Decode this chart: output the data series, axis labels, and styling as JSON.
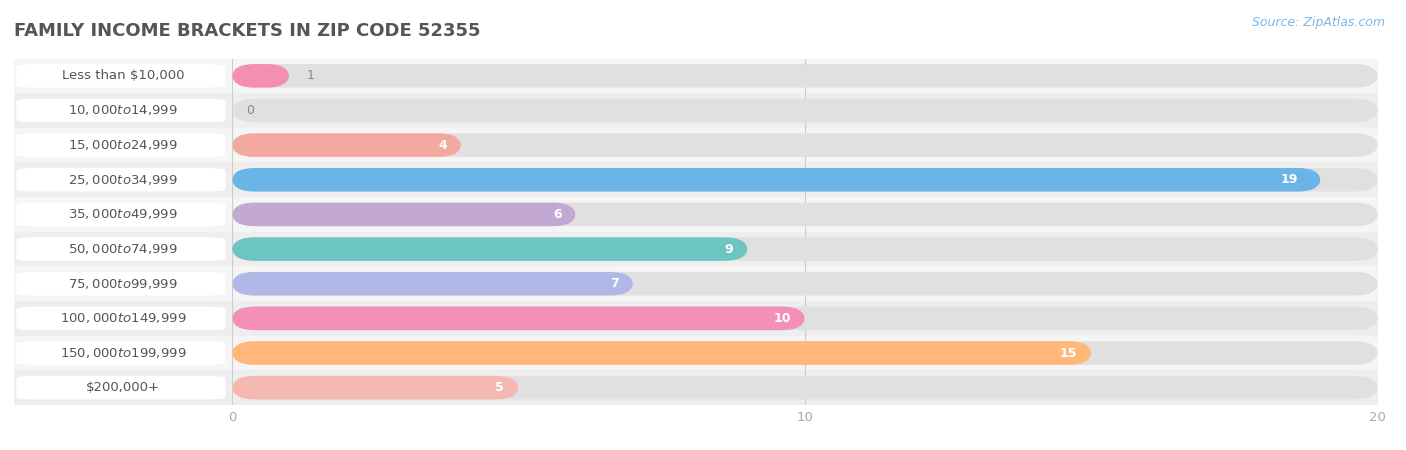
{
  "title": "Family Income Brackets in Zip Code 52355",
  "source_text": "Source: ZipAtlas.com",
  "categories": [
    "Less than $10,000",
    "$10,000 to $14,999",
    "$15,000 to $24,999",
    "$25,000 to $34,999",
    "$35,000 to $49,999",
    "$50,000 to $74,999",
    "$75,000 to $99,999",
    "$100,000 to $149,999",
    "$150,000 to $199,999",
    "$200,000+"
  ],
  "values": [
    1,
    0,
    4,
    19,
    6,
    9,
    7,
    10,
    15,
    5
  ],
  "bar_colors": [
    "#f48fb1",
    "#ffcc99",
    "#f4a9a0",
    "#6ab4e8",
    "#c4a8d4",
    "#6cc5c1",
    "#b0b8e8",
    "#f48fb8",
    "#ffb87a",
    "#f4b8b0"
  ],
  "xlim": [
    0,
    20
  ],
  "xlabel_ticks": [
    0,
    10,
    20
  ],
  "title_fontsize": 13,
  "label_fontsize": 9.5,
  "value_fontsize": 9,
  "source_fontsize": 9,
  "background_color": "#ffffff",
  "title_color": "#555555",
  "label_color": "#555555",
  "value_color_inside": "#ffffff",
  "value_color_outside": "#888888",
  "tick_color": "#aaaaaa",
  "row_colors": [
    "#f5f5f5",
    "#eeeeee"
  ]
}
